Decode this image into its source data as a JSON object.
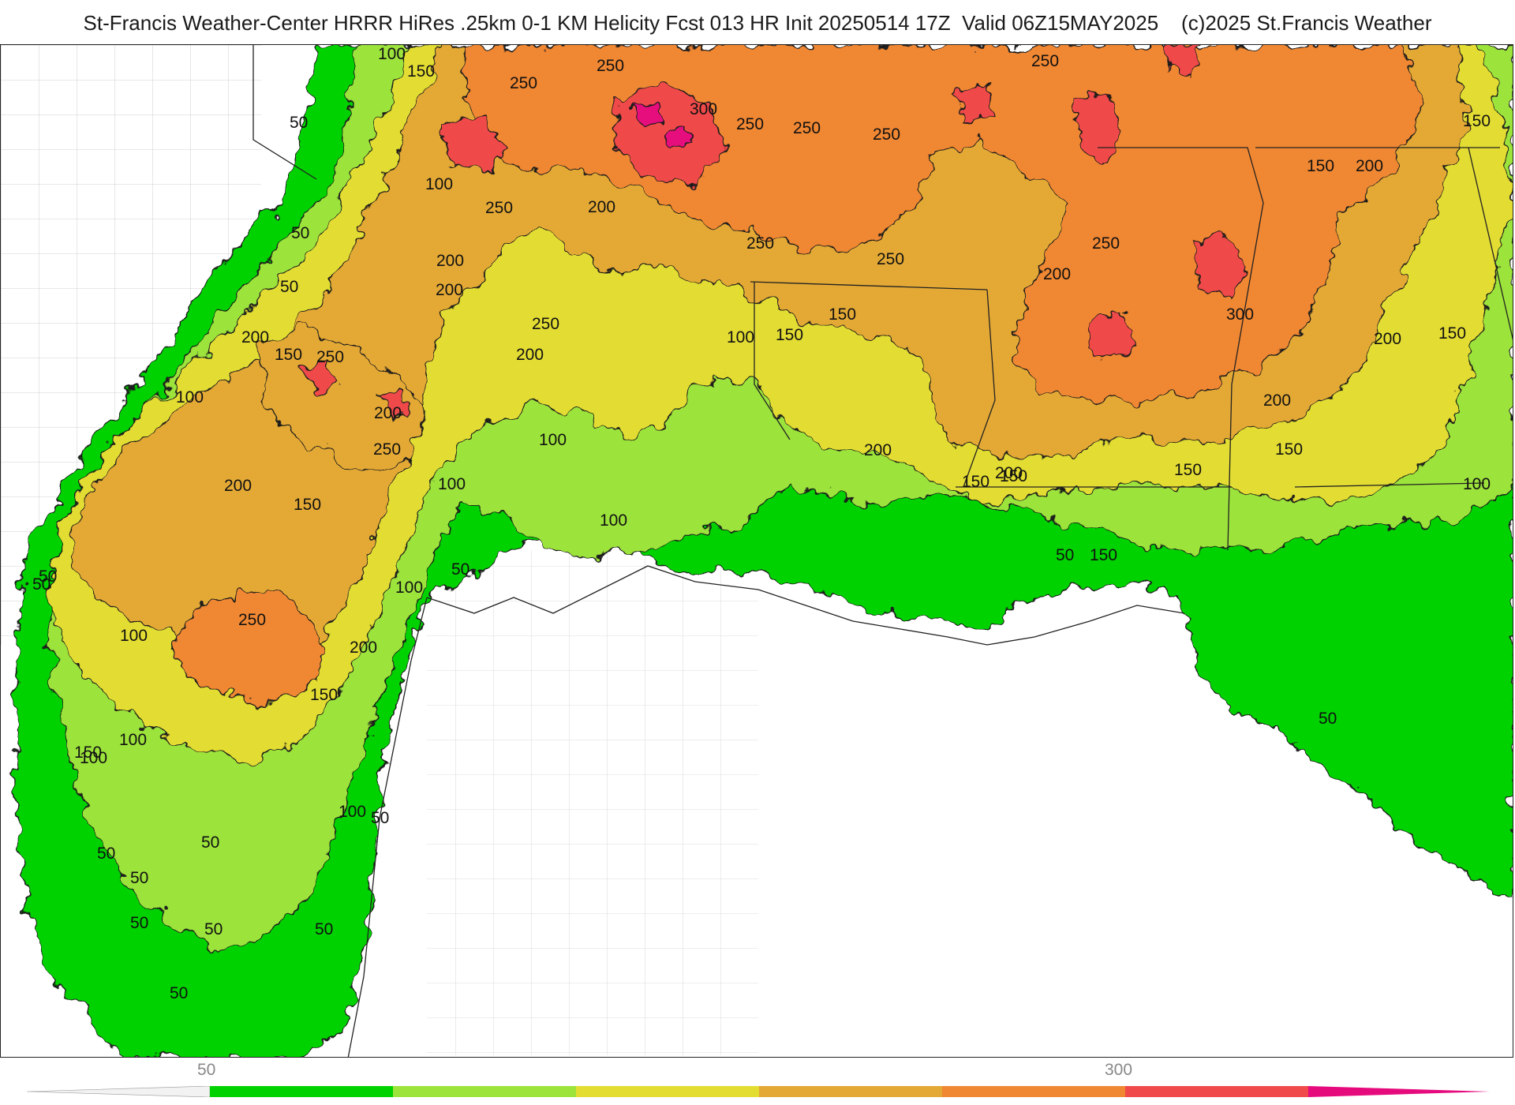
{
  "header": {
    "title": "St-Francis Weather-Center HRRR HiRes .25km 0-1 KM Helicity Fcst 013 HR Init 20250514 17Z  Valid 06Z15MAY2025    (c)2025 St.Francis Weather"
  },
  "colors": {
    "lvl_50": "#00d200",
    "lvl_100": "#9ce33a",
    "lvl_150": "#e3dc31",
    "lvl_200": "#e4a935",
    "lvl_250": "#f08732",
    "lvl_300": "#f04a4a",
    "lvl_350": "#e60b7d",
    "ocean": "#ffffff",
    "boundary": "#222222"
  },
  "contour_labels": [
    {
      "text": "100"
    },
    {
      "text": "150"
    },
    {
      "text": "50"
    },
    {
      "text": "100"
    },
    {
      "text": "50"
    },
    {
      "text": "50"
    },
    {
      "text": "250"
    },
    {
      "text": "250"
    },
    {
      "text": "300"
    },
    {
      "text": "250"
    },
    {
      "text": "250"
    },
    {
      "text": "250"
    },
    {
      "text": "250"
    },
    {
      "text": "250"
    },
    {
      "text": "200"
    },
    {
      "text": "200"
    },
    {
      "text": "200"
    },
    {
      "text": "250"
    },
    {
      "text": "250"
    },
    {
      "text": "250"
    },
    {
      "text": "150"
    },
    {
      "text": "150"
    },
    {
      "text": "200"
    },
    {
      "text": "200"
    },
    {
      "text": "250"
    },
    {
      "text": "100"
    },
    {
      "text": "150"
    },
    {
      "text": "150"
    },
    {
      "text": "200"
    },
    {
      "text": "150"
    },
    {
      "text": "200"
    },
    {
      "text": "250"
    },
    {
      "text": "250"
    },
    {
      "text": "300"
    },
    {
      "text": "200"
    },
    {
      "text": "150"
    },
    {
      "text": "200"
    },
    {
      "text": "150"
    },
    {
      "text": "100"
    },
    {
      "text": "200"
    },
    {
      "text": "100"
    },
    {
      "text": "150"
    },
    {
      "text": "100"
    },
    {
      "text": "100"
    },
    {
      "text": "150"
    },
    {
      "text": "100"
    },
    {
      "text": "200"
    },
    {
      "text": "200"
    },
    {
      "text": "200"
    },
    {
      "text": "150"
    },
    {
      "text": "150"
    },
    {
      "text": "50"
    },
    {
      "text": "150"
    },
    {
      "text": "50"
    },
    {
      "text": "100"
    },
    {
      "text": "250"
    },
    {
      "text": "100"
    },
    {
      "text": "200"
    },
    {
      "text": "150"
    },
    {
      "text": "50"
    },
    {
      "text": "50"
    },
    {
      "text": "100"
    },
    {
      "text": "150"
    },
    {
      "text": "100"
    },
    {
      "text": "100"
    },
    {
      "text": "50"
    },
    {
      "text": "50"
    },
    {
      "text": "50"
    },
    {
      "text": "50"
    },
    {
      "text": "50"
    },
    {
      "text": "50"
    },
    {
      "text": "50"
    },
    {
      "text": "50"
    },
    {
      "text": "50"
    }
  ],
  "colorbar": {
    "tick_labels": [
      "50",
      "300"
    ]
  }
}
